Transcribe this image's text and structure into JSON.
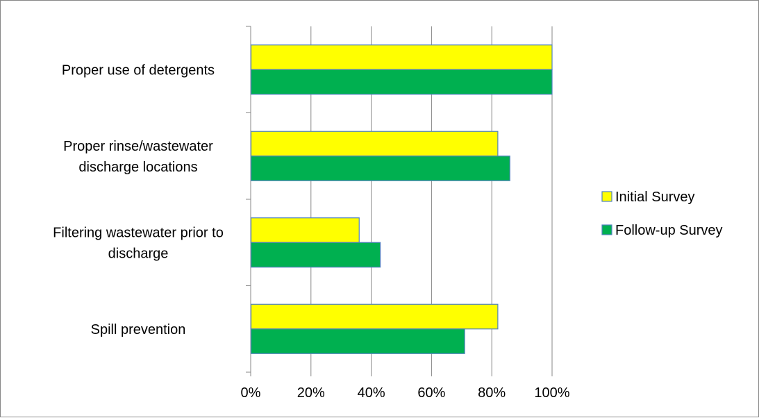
{
  "chart_data": {
    "type": "bar",
    "orientation": "horizontal",
    "title": "",
    "xlabel": "",
    "ylabel": "",
    "xlim": [
      0,
      100
    ],
    "x_tick_labels": [
      "0%",
      "20%",
      "40%",
      "60%",
      "80%",
      "100%"
    ],
    "gridlines": true,
    "legend_position": "right",
    "categories": [
      [
        "Proper use of detergents"
      ],
      [
        "Proper rinse/wastewater",
        "discharge locations"
      ],
      [
        "Filtering wastewater prior to",
        "discharge"
      ],
      [
        "Spill prevention"
      ]
    ],
    "series": [
      {
        "name": "Initial Survey",
        "color": "#ffff00",
        "values": [
          100,
          82,
          36,
          82
        ]
      },
      {
        "name": "Follow-up Survey",
        "color": "#00b050",
        "values": [
          100,
          86,
          43,
          71
        ]
      }
    ],
    "bar_border_color": "#4f81bd",
    "axis_color": "#878787"
  }
}
